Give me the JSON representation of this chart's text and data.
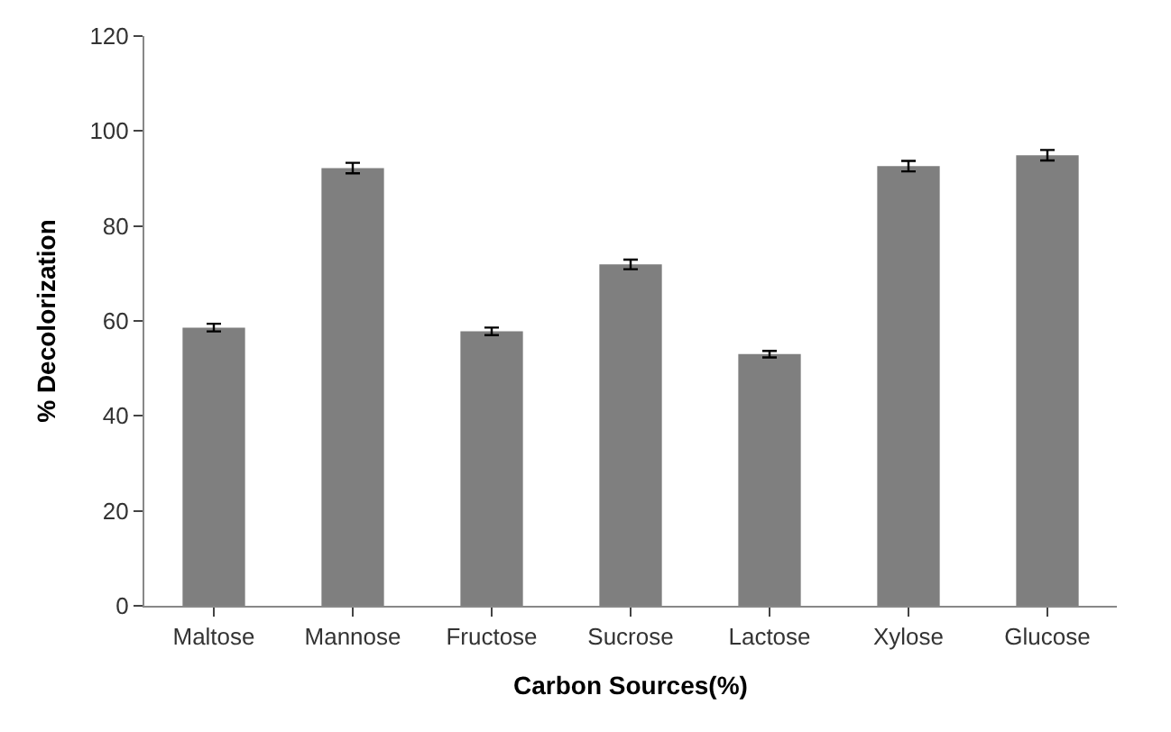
{
  "chart_data": {
    "type": "bar",
    "xlabel": "Carbon Sources(%)",
    "ylabel": "% Decolorization",
    "categories": [
      "Maltose",
      "Mannose",
      "Fructose",
      "Sucrose",
      "Lactose",
      "Xylose",
      "Glucose"
    ],
    "values": [
      58.6,
      92.2,
      57.8,
      71.9,
      53.0,
      92.6,
      94.9
    ],
    "errors": [
      0.8,
      1.1,
      0.8,
      1.0,
      0.7,
      1.1,
      1.1
    ],
    "color": "#7f7f7f",
    "ylim": [
      0,
      120
    ],
    "yticks": [
      0,
      20,
      40,
      60,
      80,
      100,
      120
    ],
    "legend": false
  }
}
